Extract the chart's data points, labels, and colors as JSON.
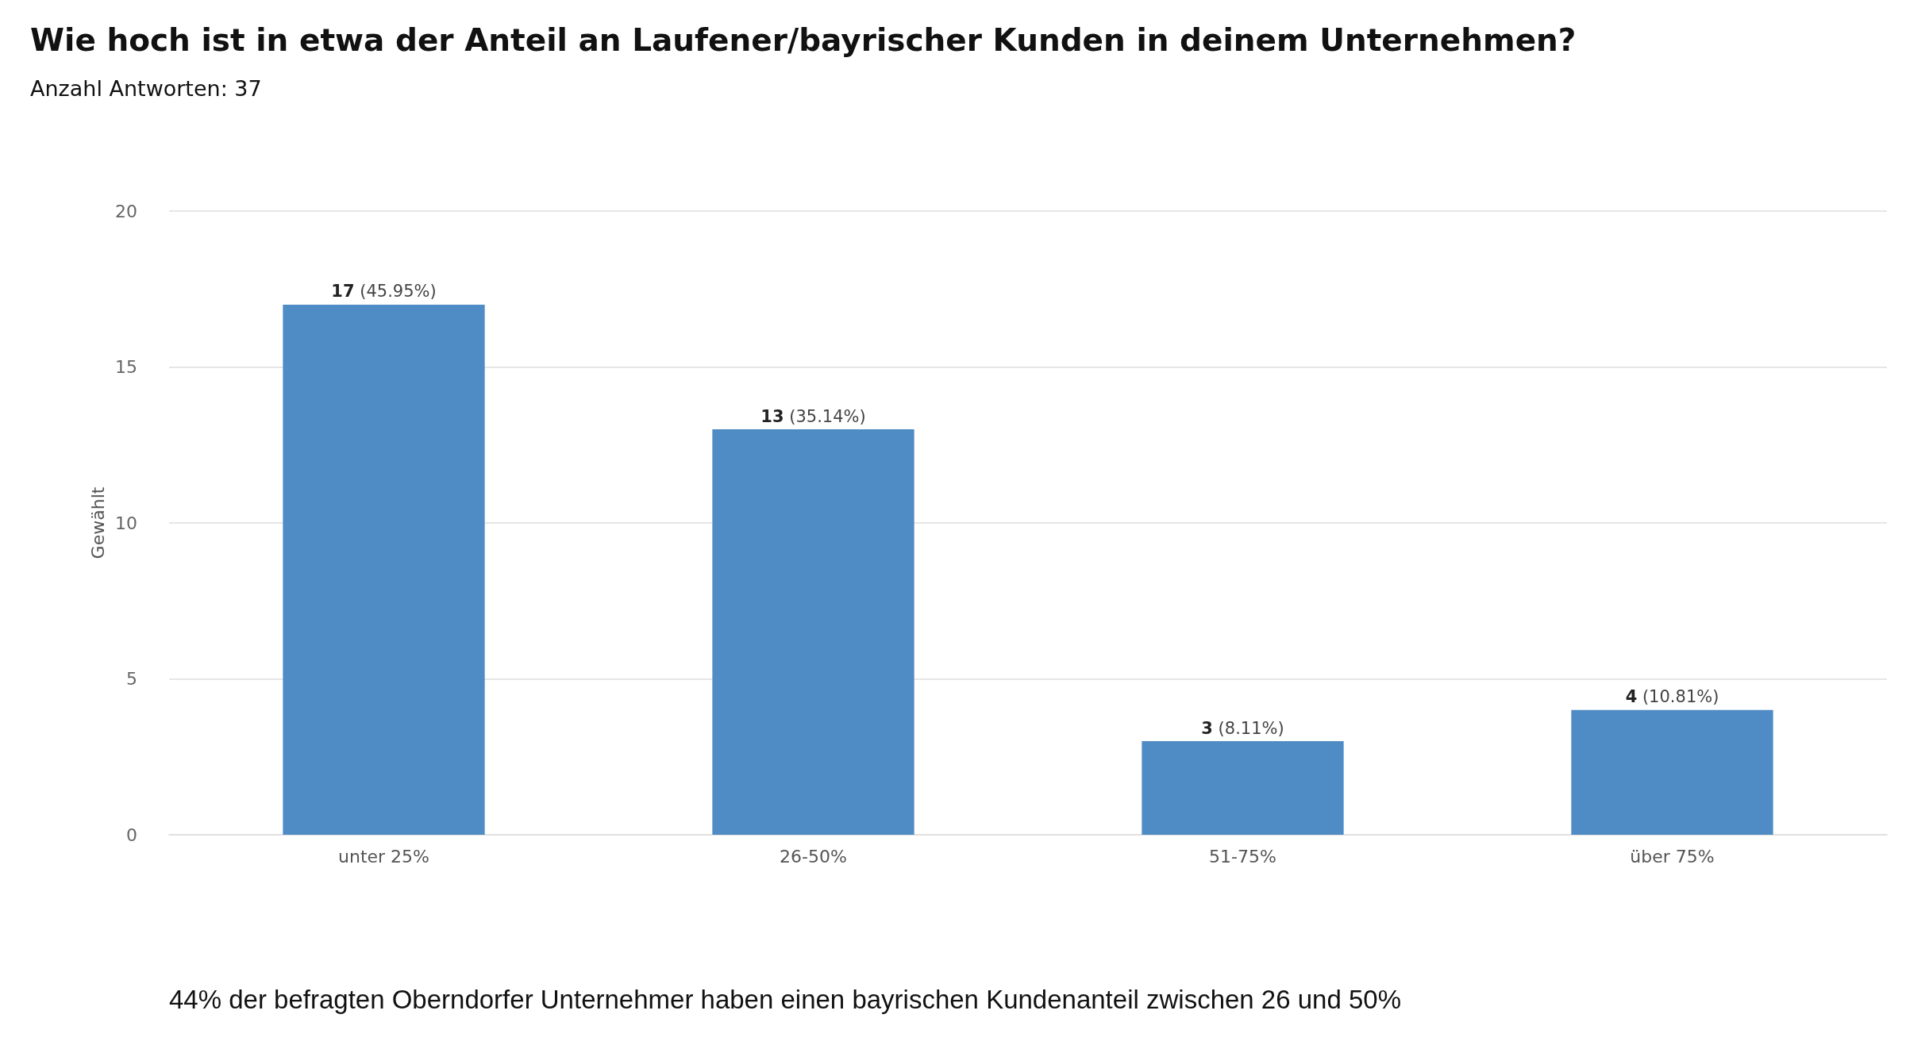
{
  "chart_data": {
    "type": "bar",
    "title": "Wie hoch ist in etwa der Anteil an Laufener/bayrischer Kunden in deinem Unternehmen?",
    "subtitle": "Anzahl Antworten: 37",
    "ylabel": "Gewählt",
    "categories": [
      "unter 25%",
      "26-50%",
      "51-75%",
      "über 75%"
    ],
    "values": [
      17,
      13,
      3,
      4
    ],
    "color": "#4f8bc4",
    "value_labels": [
      "17 (45.95%)",
      "13 (35.14%)",
      "3 (8.11%)",
      "4 (10.81%)"
    ],
    "ylim": [
      0,
      20
    ],
    "yticks": [
      0,
      5,
      10,
      15,
      20
    ],
    "grid": "y",
    "annotations": [
      "44% der befragten Oberndorfer Unternehmer haben einen bayrischen Kundenanteil zwischen 26 und 50%"
    ]
  }
}
